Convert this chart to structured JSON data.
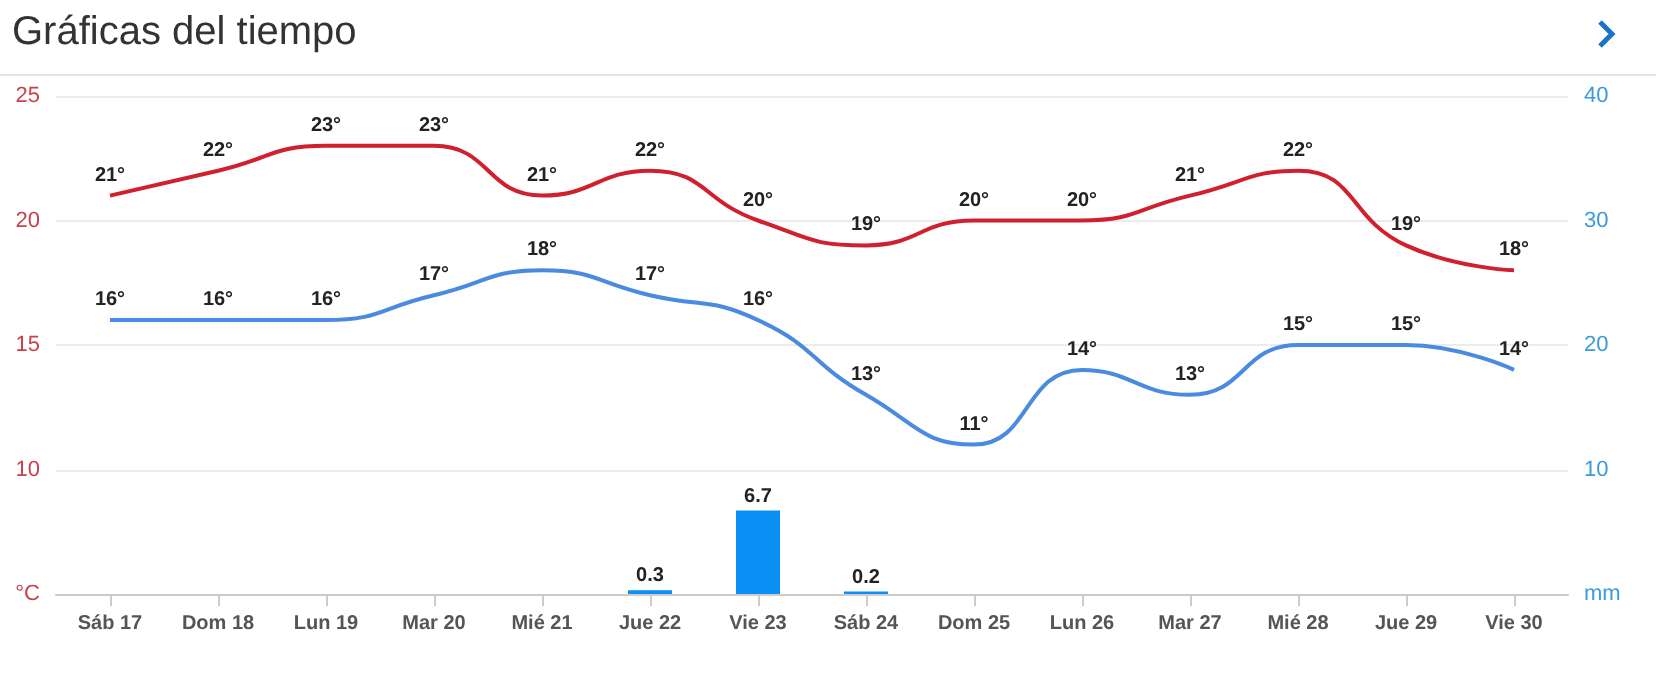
{
  "chart_data": {
    "type": "line",
    "title": "Gráficas del tiempo",
    "categories": [
      "Sáb 17",
      "Dom 18",
      "Lun 19",
      "Mar 20",
      "Mié 21",
      "Jue 22",
      "Vie 23",
      "Sáb 24",
      "Dom 25",
      "Lun 26",
      "Mar 27",
      "Mié 28",
      "Jue 29",
      "Vie 30"
    ],
    "series": [
      {
        "color": "#d0202e",
        "values": [
          21,
          22,
          23,
          23,
          21,
          22,
          20,
          19,
          20,
          20,
          21,
          22,
          19,
          18
        ],
        "value_labels": [
          "21°",
          "22°",
          "23°",
          "23°",
          "21°",
          "22°",
          "20°",
          "19°",
          "20°",
          "20°",
          "21°",
          "22°",
          "19°",
          "18°"
        ]
      },
      {
        "color": "#4a8ae0",
        "values": [
          16,
          16,
          16,
          17,
          18,
          17,
          16,
          13,
          11,
          14,
          13,
          15,
          15,
          14
        ],
        "value_labels": [
          "16°",
          "16°",
          "16°",
          "17°",
          "18°",
          "17°",
          "16°",
          "13°",
          "11°",
          "14°",
          "13°",
          "15°",
          "15°",
          "14°"
        ]
      },
      {
        "type": "bar",
        "axis": "y2",
        "color": "#0a90f5",
        "values": [
          null,
          null,
          null,
          null,
          null,
          0.3,
          6.7,
          0.2,
          null,
          null,
          null,
          null,
          null,
          null
        ],
        "value_labels": [
          null,
          null,
          null,
          null,
          null,
          "0.3",
          "6.7",
          "0.2",
          null,
          null,
          null,
          null,
          null,
          null
        ]
      }
    ],
    "ylim": [
      5,
      25
    ],
    "yticks": [
      {
        "value": 5,
        "label": "°C"
      },
      10,
      15,
      20,
      25
    ],
    "y2lim": [
      0,
      40
    ],
    "y2ticks": [
      {
        "value": 0,
        "label": "mm"
      },
      10,
      20,
      30,
      40
    ],
    "grid": "y"
  }
}
